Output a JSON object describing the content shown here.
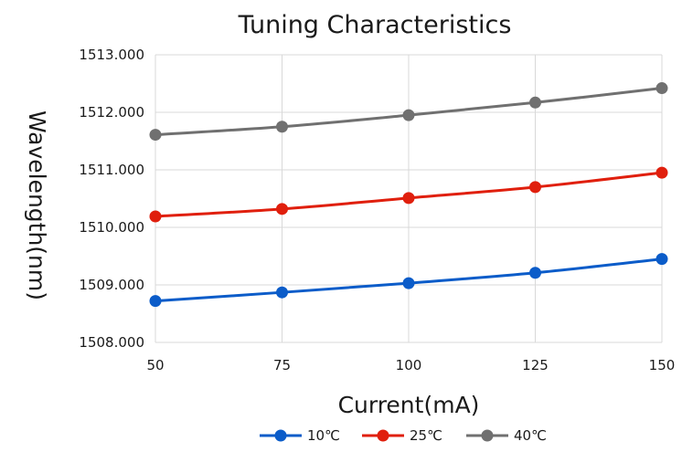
{
  "chart_data": {
    "type": "line",
    "title": "Tuning Characteristics",
    "xlabel": "Current(mA)",
    "ylabel": "Wavelength(nm)",
    "x": [
      50,
      75,
      100,
      125,
      150
    ],
    "x_tick_labels": [
      "50",
      "75",
      "100",
      "125",
      "150"
    ],
    "xlim": [
      50,
      150
    ],
    "ylim": [
      1508,
      1513
    ],
    "y_ticks": [
      1508,
      1509,
      1510,
      1511,
      1512,
      1513
    ],
    "y_tick_labels": [
      "1508.000",
      "1509.000",
      "1510.000",
      "1511.000",
      "1512.000",
      "1513.000"
    ],
    "grid": true,
    "legend_position": "bottom",
    "series": [
      {
        "name": "10℃",
        "color": "#0b5cc9",
        "values": [
          1508.72,
          1508.87,
          1509.03,
          1509.21,
          1509.45
        ]
      },
      {
        "name": "25℃",
        "color": "#e01f0d",
        "values": [
          1510.19,
          1510.32,
          1510.51,
          1510.7,
          1510.95
        ]
      },
      {
        "name": "40℃",
        "color": "#707070",
        "values": [
          1511.61,
          1511.75,
          1511.95,
          1512.17,
          1512.42
        ]
      }
    ]
  }
}
